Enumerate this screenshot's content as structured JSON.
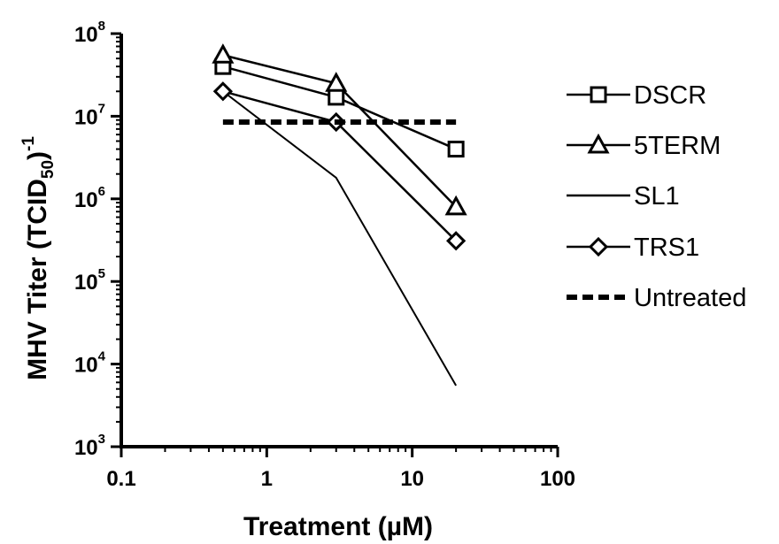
{
  "chart_data": {
    "type": "line",
    "xlabel": "Treatment  (µM)",
    "ylabel_main": "MHV Titer (TCID",
    "ylabel_sub": "50",
    "ylabel_tail": ")",
    "ylabel_sup": "-1",
    "x_scale": "log",
    "y_scale": "log",
    "xlim": [
      0.1,
      100
    ],
    "ylim": [
      1000,
      100000000
    ],
    "x_ticks": [
      {
        "value": 0.1,
        "label": "0.1"
      },
      {
        "value": 1,
        "label": "1"
      },
      {
        "value": 10,
        "label": "10"
      },
      {
        "value": 100,
        "label": "100"
      }
    ],
    "y_ticks": [
      {
        "value": 1000,
        "base": "10",
        "exp": "3"
      },
      {
        "value": 10000,
        "base": "10",
        "exp": "4"
      },
      {
        "value": 100000,
        "base": "10",
        "exp": "5"
      },
      {
        "value": 1000000,
        "base": "10",
        "exp": "6"
      },
      {
        "value": 10000000,
        "base": "10",
        "exp": "7"
      },
      {
        "value": 100000000,
        "base": "10",
        "exp": "8"
      }
    ],
    "legend_position": "right",
    "grid": false,
    "series": [
      {
        "name": "DSCR",
        "marker": "square",
        "x": [
          0.5,
          3,
          20
        ],
        "y": [
          40000000,
          17000000,
          4000000
        ]
      },
      {
        "name": "5TERM",
        "marker": "triangle",
        "x": [
          0.5,
          3,
          20
        ],
        "y": [
          55000000,
          25000000,
          800000
        ]
      },
      {
        "name": "SL1",
        "marker": "none",
        "x": [
          0.5,
          3,
          20
        ],
        "y": [
          20000000,
          1800000,
          5500
        ]
      },
      {
        "name": "TRS1",
        "marker": "diamond",
        "x": [
          0.5,
          3,
          20
        ],
        "y": [
          20000000,
          8500000,
          310000
        ]
      },
      {
        "name": "Untreated",
        "marker": "none",
        "dashed": true,
        "x": [
          0.5,
          20
        ],
        "y": [
          8500000,
          8500000
        ]
      }
    ]
  }
}
